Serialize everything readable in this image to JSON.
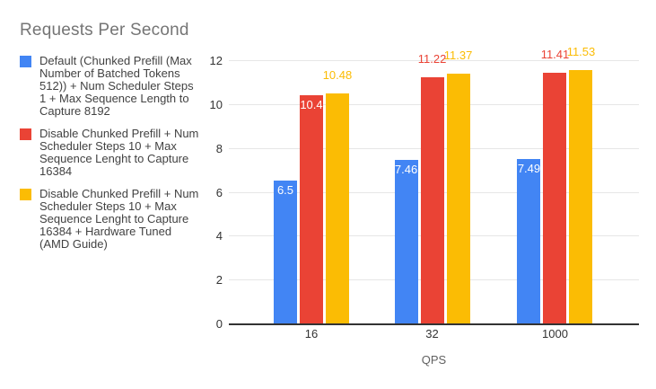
{
  "chart_data": {
    "type": "bar",
    "title": "Requests Per Second",
    "xlabel": "QPS",
    "ylabel": "",
    "categories": [
      "16",
      "32",
      "1000"
    ],
    "series": [
      {
        "name": "Default (Chunked Prefill (Max Number of Batched Tokens 512)) + Num Scheduler Steps 1 + Max Sequence Length to Capture 8192",
        "color": "#4285f4",
        "values": [
          6.5,
          7.46,
          7.49
        ],
        "data_labels": [
          "6.5",
          "7.46",
          "7.49"
        ],
        "label_placement": [
          "inside",
          "inside",
          "inside"
        ]
      },
      {
        "name": "Disable Chunked Prefill + Num Scheduler Steps 10 + Max Sequence Lenght to Capture 16384",
        "color": "#ea4335",
        "values": [
          10.4,
          11.22,
          11.41
        ],
        "data_labels": [
          "10.4",
          "11.22",
          "11.41"
        ],
        "label_placement": [
          "inside",
          "above",
          "above"
        ]
      },
      {
        "name": "Disable Chunked Prefill + Num Scheduler Steps 10 + Max Sequence Lenght to Capture 16384 + Hardware Tuned (AMD Guide)",
        "color": "#fbbc04",
        "values": [
          10.48,
          11.37,
          11.53
        ],
        "data_labels": [
          "10.48",
          "11.37",
          "11.53"
        ],
        "label_placement": [
          "above",
          "above",
          "above"
        ]
      }
    ],
    "y_ticks": [
      0,
      2,
      4,
      6,
      8,
      10,
      12
    ],
    "ylim": [
      0,
      12
    ],
    "grid": true,
    "legend_position": "left",
    "styles": {
      "title_color": "#757575",
      "legend_text_color": "#424242",
      "axis_label_color": "#333333",
      "axis_title_color": "#616161",
      "gridline_color": "#e6e6e6",
      "baseline_color": "#333333",
      "inside_label_color": "#ffffff"
    }
  }
}
